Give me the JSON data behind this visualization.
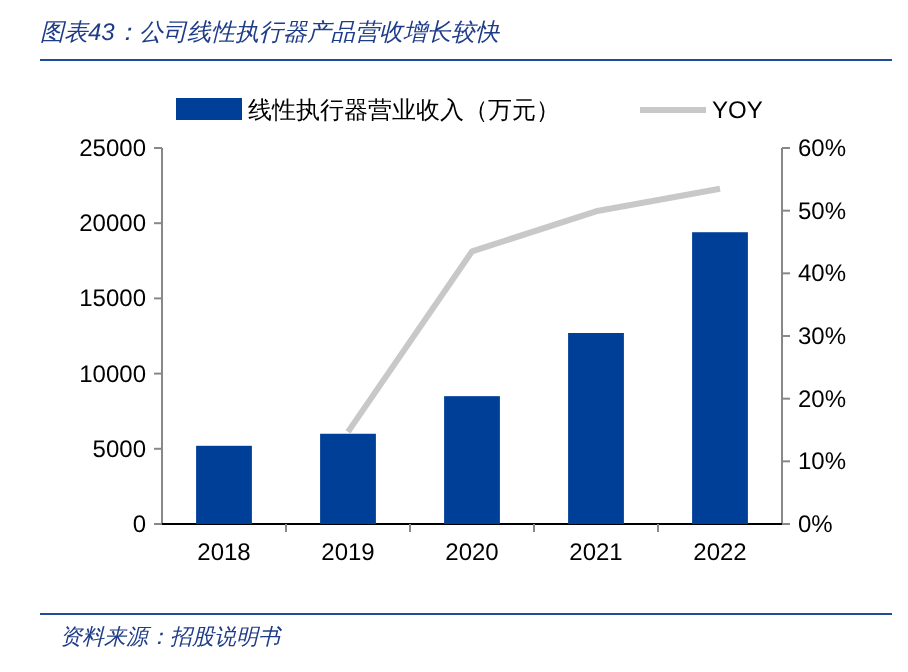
{
  "chart_data": {
    "type": "bar",
    "title": "图表43：公司线性执行器产品营收增长较快",
    "categories": [
      "2018",
      "2019",
      "2020",
      "2021",
      "2022"
    ],
    "series": [
      {
        "name": "线性执行器营业收入（万元）",
        "color": "#003f98",
        "values": [
          5200,
          6000,
          8500,
          12700,
          19400
        ]
      },
      {
        "name": "YOY",
        "type": "line",
        "axis": "y2",
        "color": "#c8c8c8",
        "values": [
          null,
          14.7,
          43.5,
          49.9,
          53.5
        ]
      }
    ],
    "ylim": [
      0,
      25000
    ],
    "yticks": [
      0,
      5000,
      10000,
      15000,
      20000,
      25000
    ],
    "y2lim": [
      0,
      60
    ],
    "y2ticks": [
      {
        "value": 0,
        "label": "0%"
      },
      {
        "value": 10,
        "label": "10%"
      },
      {
        "value": 20,
        "label": "20%"
      },
      {
        "value": 30,
        "label": "30%"
      },
      {
        "value": 40,
        "label": "40%"
      },
      {
        "value": 50,
        "label": "50%"
      },
      {
        "value": 60,
        "label": "60%"
      }
    ],
    "legend": "top",
    "annotations": [
      "资料来源：招股说明书"
    ]
  }
}
